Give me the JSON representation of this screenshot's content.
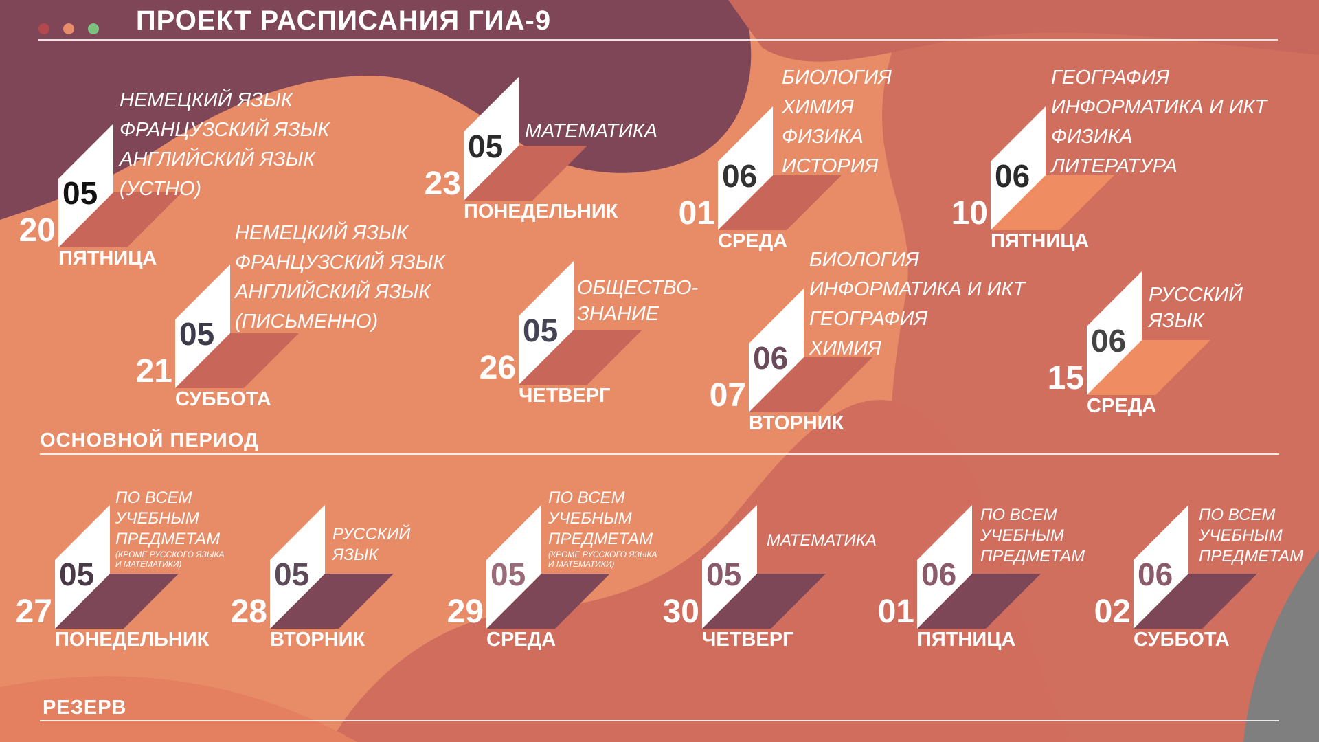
{
  "title": "ПРОЕКТ РАСПИСАНИЯ ГИА-9",
  "colors": {
    "dot1": "#b5484d",
    "dot2": "#e88c6a",
    "dot3": "#7cc27e",
    "accent_dark": "#7e4757",
    "accent_mid": "#c8645a",
    "accent_light": "#ef8c61"
  },
  "sections": {
    "main": "ОСНОВНОЙ ПЕРИОД",
    "reserve": "РЕЗЕРВ"
  },
  "main_period": [
    {
      "day": "20",
      "month": "05",
      "weekday": "ПЯТНИЦА",
      "subjects": [
        "НЕМЕЦКИЙ ЯЗЫК",
        "ФРАНЦУЗСКИЙ ЯЗЫК",
        "АНГЛИЙСКИЙ ЯЗЫК",
        "(УСТНО)"
      ]
    },
    {
      "day": "21",
      "month": "05",
      "weekday": "СУББОТА",
      "subjects": [
        "НЕМЕЦКИЙ ЯЗЫК",
        "ФРАНЦУЗСКИЙ ЯЗЫК",
        "АНГЛИЙСКИЙ ЯЗЫК",
        "(ПИСЬМЕННО)"
      ]
    },
    {
      "day": "23",
      "month": "05",
      "weekday": "ПОНЕДЕЛЬНИК",
      "subjects": [
        "МАТЕМАТИКА"
      ]
    },
    {
      "day": "26",
      "month": "05",
      "weekday": "ЧЕТВЕРГ",
      "subjects": [
        "ОБЩЕСТВО-",
        "ЗНАНИЕ"
      ]
    },
    {
      "day": "01",
      "month": "06",
      "weekday": "СРЕДА",
      "subjects": [
        "БИОЛОГИЯ",
        "ХИМИЯ",
        "ФИЗИКА",
        "ИСТОРИЯ"
      ]
    },
    {
      "day": "07",
      "month": "06",
      "weekday": "ВТОРНИК",
      "subjects": [
        "БИОЛОГИЯ",
        "ИНФОРМАТИКА И ИКТ",
        "ГЕОГРАФИЯ",
        "ХИМИЯ"
      ]
    },
    {
      "day": "10",
      "month": "06",
      "weekday": "ПЯТНИЦА",
      "subjects": [
        "ГЕОГРАФИЯ",
        "ИНФОРМАТИКА И ИКТ",
        "ФИЗИКА",
        "ЛИТЕРАТУРА"
      ]
    },
    {
      "day": "15",
      "month": "06",
      "weekday": "СРЕДА",
      "subjects": [
        "РУССКИЙ",
        "ЯЗЫК"
      ]
    }
  ],
  "reserve": [
    {
      "day": "27",
      "month": "05",
      "weekday": "ПОНЕДЕЛЬНИК",
      "subjects": [
        "ПО ВСЕМ",
        "УЧЕБНЫМ",
        "ПРЕДМЕТАМ"
      ],
      "note": [
        "(КРОМЕ РУССКОГО ЯЗЫКА",
        "И МАТЕМАТИКИ)"
      ]
    },
    {
      "day": "28",
      "month": "05",
      "weekday": "ВТОРНИК",
      "subjects": [
        "РУССКИЙ",
        "ЯЗЫК"
      ]
    },
    {
      "day": "29",
      "month": "05",
      "weekday": "СРЕДА",
      "subjects": [
        "ПО ВСЕМ",
        "УЧЕБНЫМ",
        "ПРЕДМЕТАМ"
      ],
      "note": [
        "(КРОМЕ РУССКОГО ЯЗЫКА",
        "И МАТЕМАТИКИ)"
      ]
    },
    {
      "day": "30",
      "month": "05",
      "weekday": "ЧЕТВЕРГ",
      "subjects": [
        "МАТЕМАТИКА"
      ]
    },
    {
      "day": "01",
      "month": "06",
      "weekday": "ПЯТНИЦА",
      "subjects": [
        "ПО ВСЕМ",
        "УЧЕБНЫМ",
        "ПРЕДМЕТАМ"
      ]
    },
    {
      "day": "02",
      "month": "06",
      "weekday": "СУББОТА",
      "subjects": [
        "ПО ВСЕМ",
        "УЧЕБНЫМ",
        "ПРЕДМЕТАМ"
      ]
    }
  ]
}
